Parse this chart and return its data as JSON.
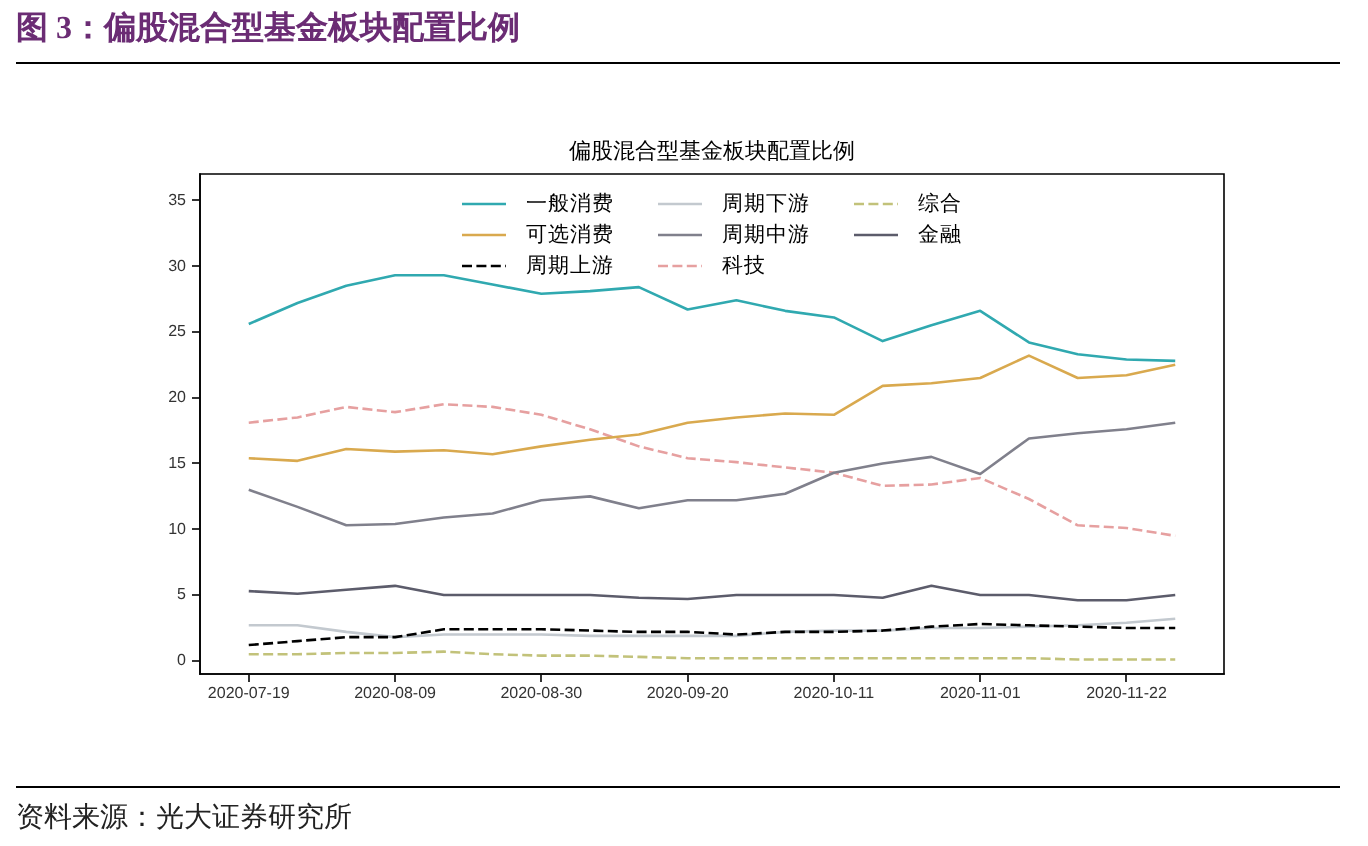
{
  "chart_data": {
    "type": "line",
    "title": "图 3：偏股混合型基金板块配置比例",
    "subtitle": "偏股混合型基金板块配置比例",
    "annotations": [
      "资料来源：光大证券研究所"
    ],
    "x": [
      "2020-07-19",
      "2020-07-26",
      "2020-08-02",
      "2020-08-09",
      "2020-08-16",
      "2020-08-23",
      "2020-08-30",
      "2020-09-06",
      "2020-09-13",
      "2020-09-20",
      "2020-09-27",
      "2020-10-04",
      "2020-10-11",
      "2020-10-18",
      "2020-10-25",
      "2020-11-01",
      "2020-11-08",
      "2020-11-15",
      "2020-11-22",
      "2020-11-29"
    ],
    "xlim": [
      "2020-07-12",
      "2020-12-06"
    ],
    "xticks": [
      "2020-07-19",
      "2020-08-09",
      "2020-08-30",
      "2020-09-20",
      "2020-10-11",
      "2020-11-01",
      "2020-11-22"
    ],
    "ylim": [
      -1,
      37
    ],
    "yticks": [
      0,
      5,
      10,
      15,
      20,
      25,
      30,
      35
    ],
    "legend": "top",
    "line_style": "solid",
    "series": [
      {
        "name": "一般消费",
        "color": "#30a9b0",
        "values": [
          25.6,
          27.2,
          28.5,
          29.3,
          29.3,
          28.6,
          27.9,
          28.1,
          28.4,
          26.7,
          27.4,
          26.6,
          26.1,
          24.3,
          25.5,
          26.6,
          24.2,
          23.3,
          22.9,
          22.8
        ]
      },
      {
        "name": "可选消费",
        "color": "#d9a94e",
        "values": [
          15.4,
          15.2,
          16.1,
          15.9,
          16.0,
          15.7,
          16.3,
          16.8,
          17.2,
          18.1,
          18.5,
          18.8,
          18.7,
          20.9,
          21.1,
          21.5,
          23.2,
          21.5,
          21.7,
          22.5
        ]
      },
      {
        "name": "周期上游",
        "color": "#000000",
        "line_style": "dashed",
        "values": [
          1.2,
          1.5,
          1.8,
          1.8,
          2.4,
          2.4,
          2.4,
          2.3,
          2.2,
          2.2,
          2.0,
          2.2,
          2.2,
          2.3,
          2.6,
          2.8,
          2.7,
          2.6,
          2.5,
          2.5
        ]
      },
      {
        "name": "周期下游",
        "color": "#c3c9cf",
        "values": [
          2.7,
          2.7,
          2.2,
          1.8,
          2.0,
          2.0,
          2.0,
          1.9,
          1.9,
          1.9,
          1.9,
          2.2,
          2.3,
          2.3,
          2.5,
          2.5,
          2.6,
          2.7,
          2.9,
          3.2
        ]
      },
      {
        "name": "周期中游",
        "color": "#80808c",
        "values": [
          13.0,
          11.7,
          10.3,
          10.4,
          10.9,
          11.2,
          12.2,
          12.5,
          11.6,
          12.2,
          12.2,
          12.7,
          14.3,
          15.0,
          15.5,
          14.2,
          16.9,
          17.3,
          17.6,
          18.1
        ]
      },
      {
        "name": "科技",
        "color": "#e6a0a0",
        "line_style": "dashed",
        "values": [
          18.1,
          18.5,
          19.3,
          18.9,
          19.5,
          19.3,
          18.7,
          17.6,
          16.3,
          15.4,
          15.1,
          14.7,
          14.3,
          13.3,
          13.4,
          13.9,
          12.3,
          10.3,
          10.1,
          9.5
        ]
      },
      {
        "name": "综合",
        "color": "#c2c27a",
        "line_style": "dashed",
        "values": [
          0.5,
          0.5,
          0.6,
          0.6,
          0.7,
          0.5,
          0.4,
          0.4,
          0.3,
          0.2,
          0.2,
          0.2,
          0.2,
          0.2,
          0.2,
          0.2,
          0.2,
          0.1,
          0.1,
          0.1
        ]
      },
      {
        "name": "金融",
        "color": "#5c5c6b",
        "values": [
          5.3,
          5.1,
          5.4,
          5.7,
          5.0,
          5.0,
          5.0,
          5.0,
          4.8,
          4.7,
          5.0,
          5.0,
          5.0,
          4.8,
          5.7,
          5.0,
          5.0,
          4.6,
          4.6,
          5.0
        ]
      }
    ]
  }
}
